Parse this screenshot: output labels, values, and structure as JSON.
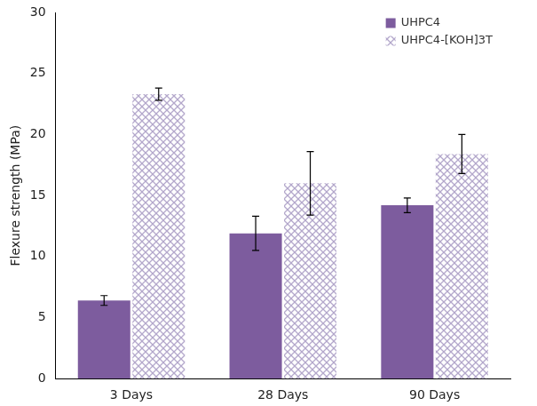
{
  "chart_data": {
    "type": "bar",
    "y_label": "Flexure strength (MPa)",
    "categories": [
      "3 Days",
      "28 Days",
      "90 Days"
    ],
    "series": [
      {
        "name": "UHPC4",
        "color": "#7d5c9e",
        "values": [
          6.4,
          11.9,
          14.2
        ],
        "errors": [
          0.4,
          1.4,
          0.6
        ]
      },
      {
        "name": "UHPC4-[KOH]3T",
        "color": "#b3a7cb",
        "values": [
          23.3,
          16.0,
          18.4
        ],
        "errors": [
          0.5,
          2.6,
          1.6
        ]
      }
    ],
    "ylim": [
      0,
      30
    ],
    "yticks": [
      0,
      5,
      10,
      15,
      20,
      25,
      30
    ],
    "grid": false,
    "legend": "upper right"
  }
}
